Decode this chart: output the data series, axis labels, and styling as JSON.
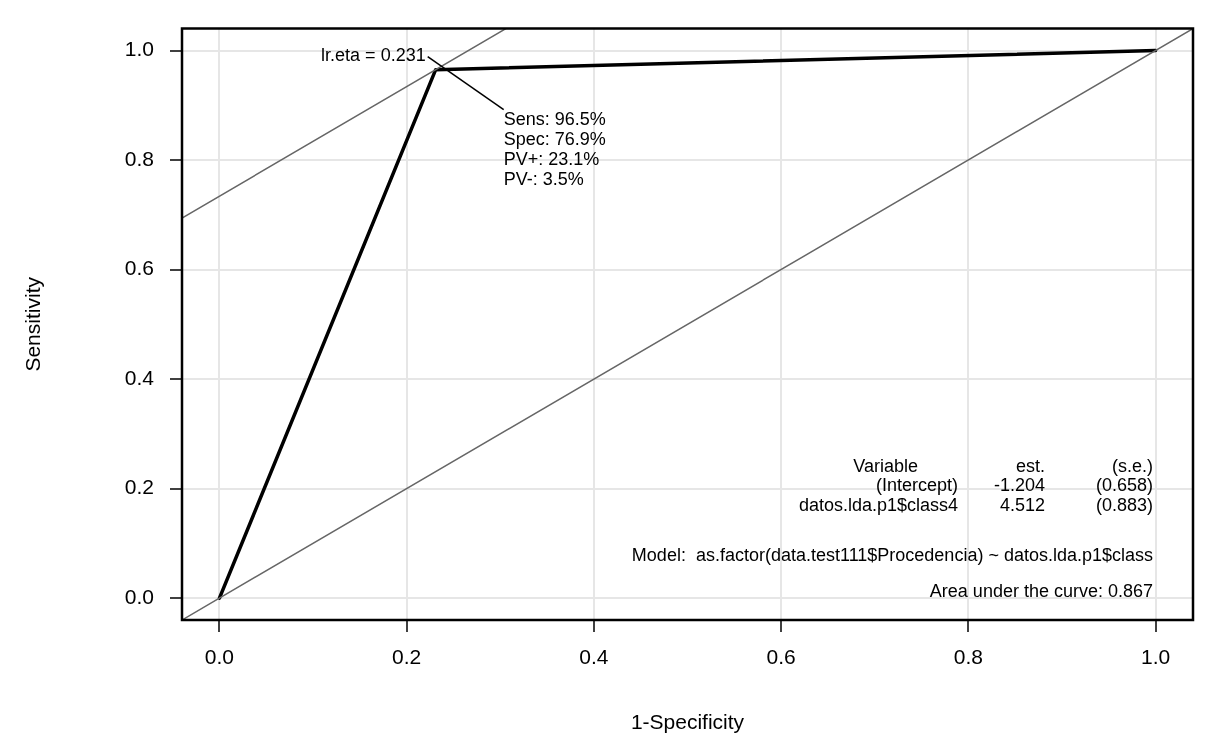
{
  "chart_data": {
    "type": "line",
    "xlabel": "1-Specificity",
    "ylabel": "Sensitivity",
    "xlim": [
      -0.04,
      1.04
    ],
    "ylim": [
      -0.04,
      1.04
    ],
    "xticks": [
      {
        "value": 0,
        "label": "0.0"
      },
      {
        "value": 0.2,
        "label": "0.2"
      },
      {
        "value": 0.4,
        "label": "0.4"
      },
      {
        "value": 0.6,
        "label": "0.6"
      },
      {
        "value": 0.8,
        "label": "0.8"
      },
      {
        "value": 1,
        "label": "1.0"
      }
    ],
    "yticks": [
      {
        "value": 0,
        "label": "0.0"
      },
      {
        "value": 0.2,
        "label": "0.2"
      },
      {
        "value": 0.4,
        "label": "0.4"
      },
      {
        "value": 0.6,
        "label": "0.6"
      },
      {
        "value": 0.8,
        "label": "0.8"
      },
      {
        "value": 1,
        "label": "1.0"
      }
    ],
    "grid": true,
    "marker": "none",
    "line_style": "solid",
    "series": [
      {
        "color": "#666666",
        "x": [
          -0.04,
          1.04
        ],
        "values": [
          -0.04,
          1.04
        ]
      },
      {
        "color": "#666666",
        "x": [
          -0.04,
          0.306
        ],
        "values": [
          0.694,
          1.04
        ]
      },
      {
        "color": "#000000",
        "x": [
          0,
          0.231,
          1
        ],
        "values": [
          0,
          0.965,
          1
        ]
      }
    ],
    "annotations": [
      {
        "text": "lr.eta = 0.231",
        "x": 0.231,
        "y": 0.965
      },
      "Sens: 96.5%",
      "Spec: 76.9%",
      "PV+: 23.1%",
      "PV-: 3.5%",
      "Variable    est.    (s.e.)",
      "(Intercept)    -1.204    (0.658)",
      "datos.lda.p1$class4    4.512    (0.883)",
      "Model:  as.factor(data.test111$Procedencia) ~ datos.lda.p1$class",
      "Area under the curve: 0.867"
    ]
  }
}
